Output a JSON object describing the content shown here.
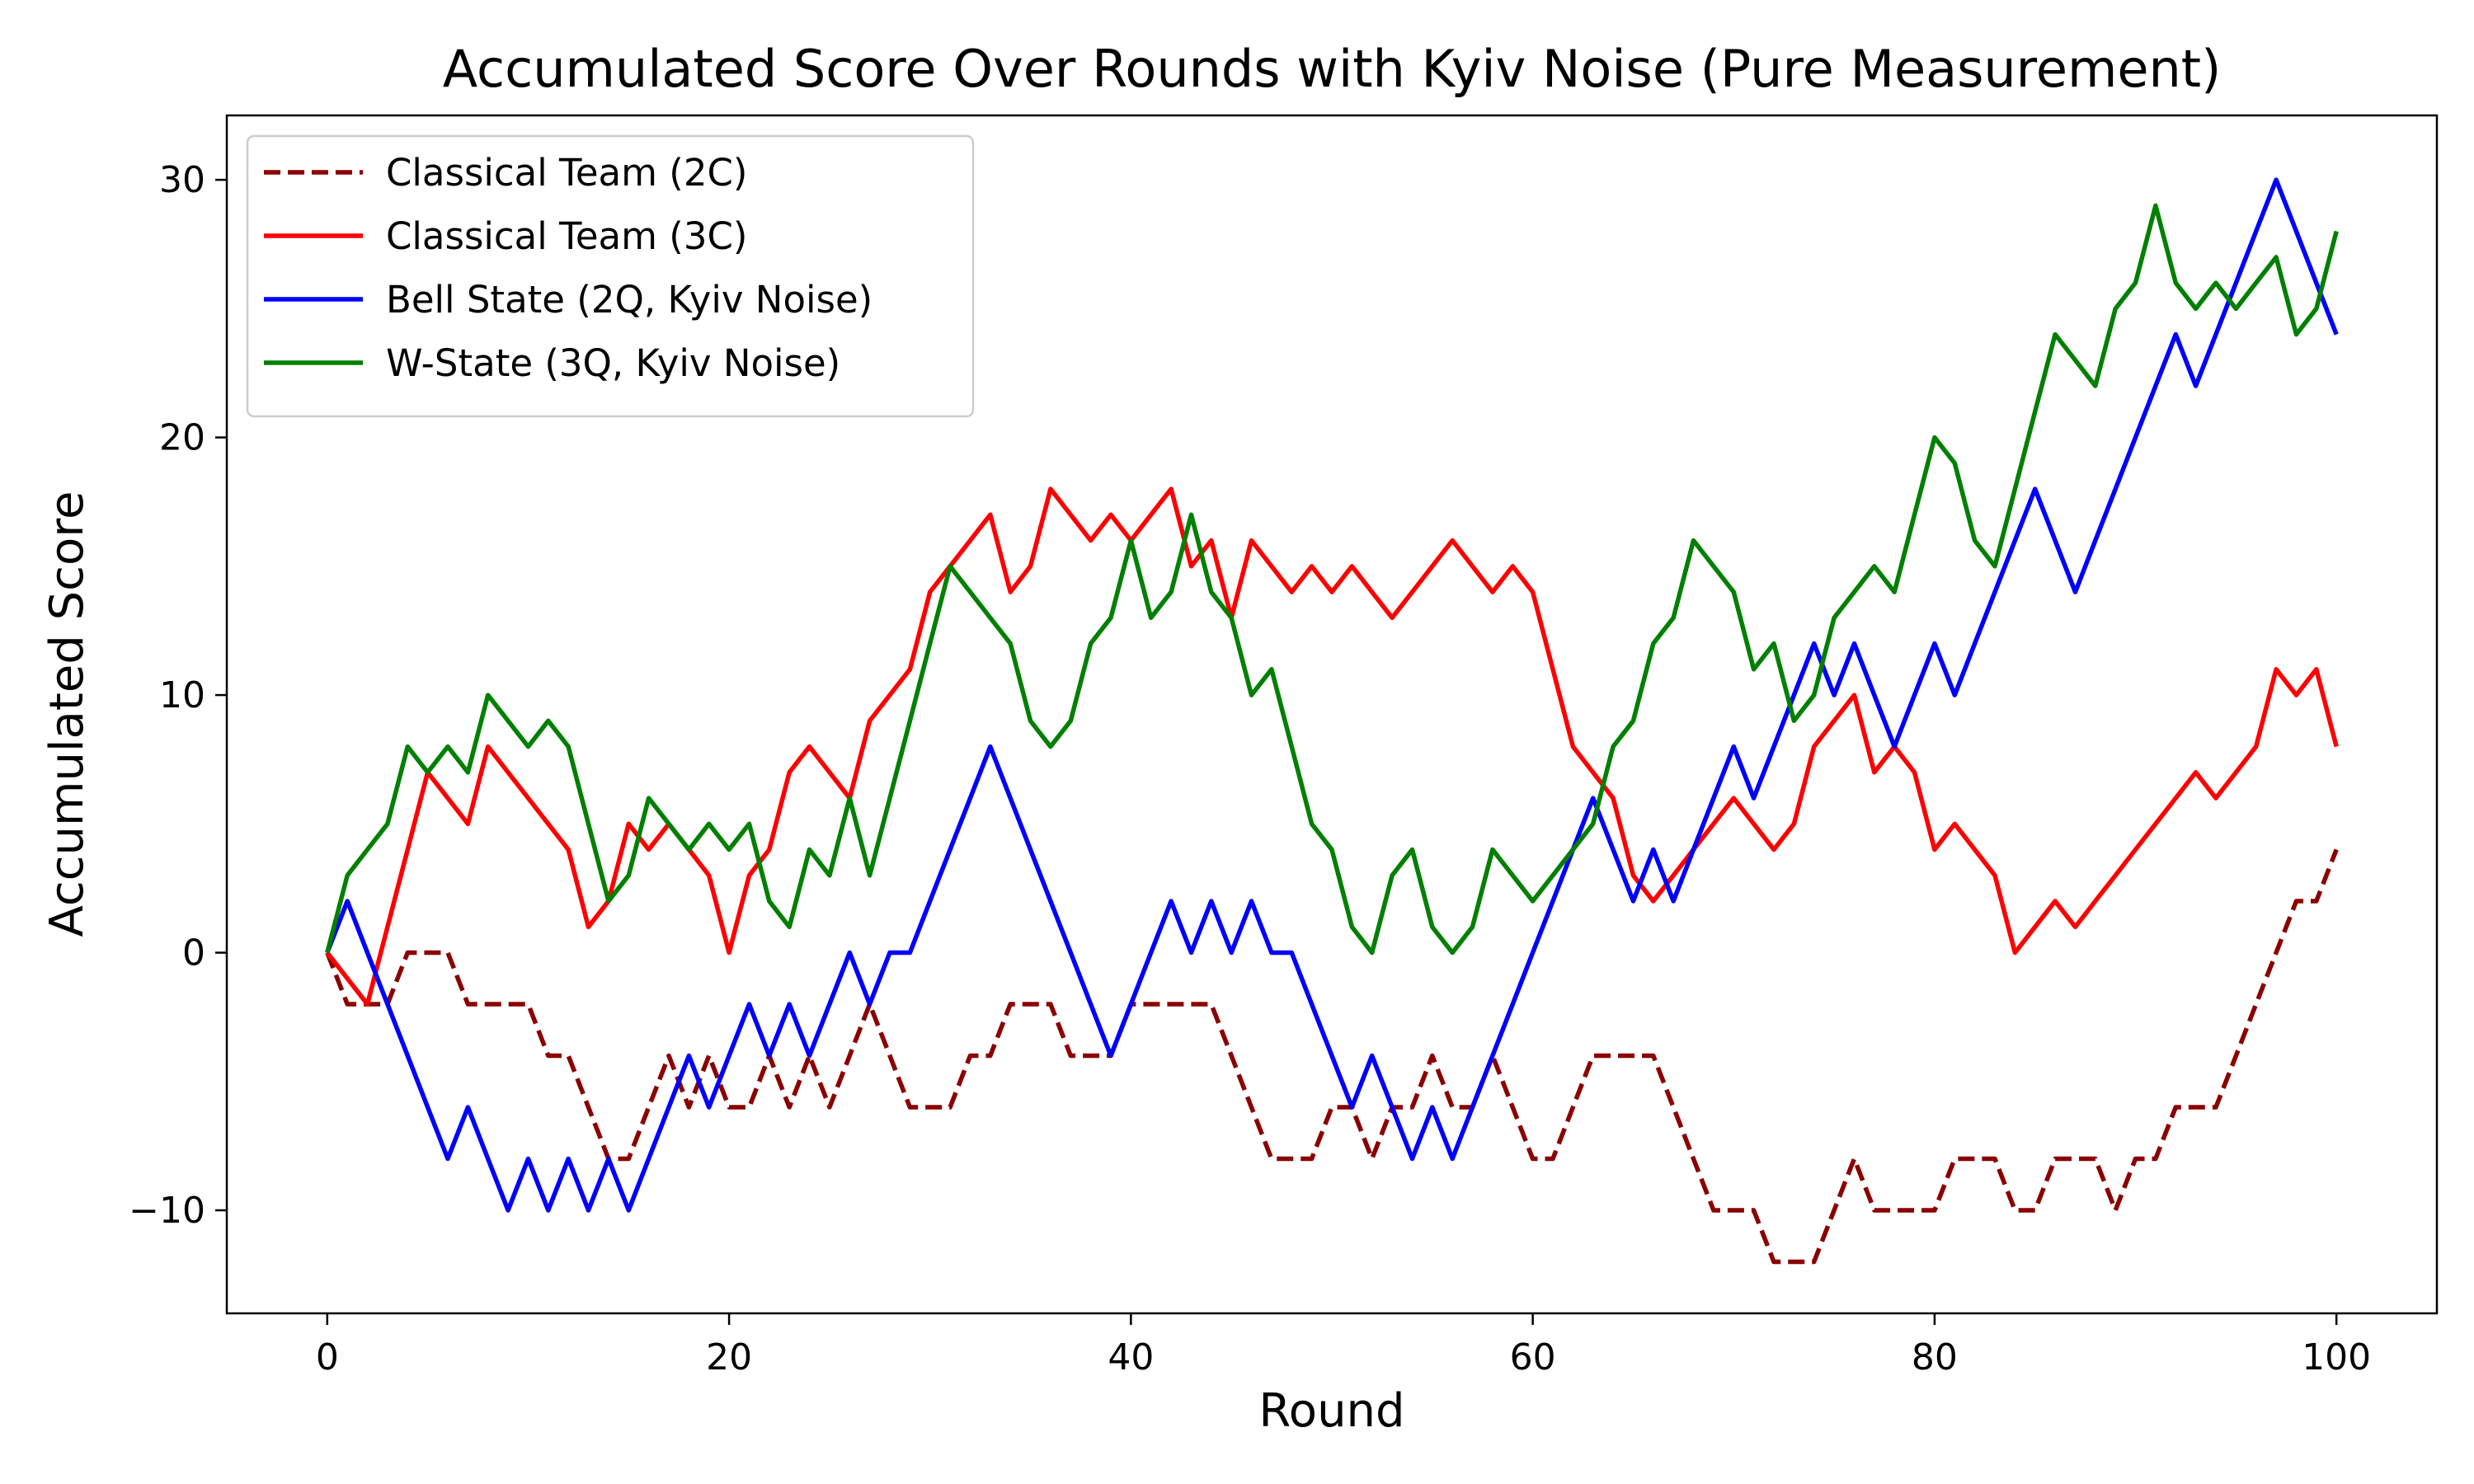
{
  "chart_data": {
    "type": "line",
    "title": "Accumulated Score Over Rounds with Kyiv Noise (Pure Measurement)",
    "xlabel": "Round",
    "ylabel": "Accumulated Score",
    "xlim": [
      -5,
      105
    ],
    "ylim": [
      -14,
      32.5
    ],
    "xticks": [
      0,
      20,
      40,
      60,
      80,
      100
    ],
    "yticks": [
      -10,
      0,
      10,
      20,
      30
    ],
    "xtick_labels": [
      "0",
      "20",
      "40",
      "60",
      "80",
      "100"
    ],
    "ytick_labels": [
      "−10",
      "0",
      "10",
      "20",
      "30"
    ],
    "grid": false,
    "legend_position": "top-left",
    "series": [
      {
        "name": "Classical Team (2C)",
        "color": "#8b0000",
        "style": "dashed",
        "x": [
          0,
          1,
          2,
          3,
          4,
          5,
          6,
          7,
          8,
          9,
          10,
          11,
          12,
          13,
          14,
          15,
          16,
          17,
          18,
          19,
          20,
          21,
          22,
          23,
          24,
          25,
          26,
          27,
          28,
          29,
          30,
          31,
          32,
          33,
          34,
          35,
          36,
          37,
          38,
          39,
          40,
          41,
          42,
          43,
          44,
          45,
          46,
          47,
          48,
          49,
          50,
          51,
          52,
          53,
          54,
          55,
          56,
          57,
          58,
          59,
          60,
          61,
          62,
          63,
          64,
          65,
          66,
          67,
          68,
          69,
          70,
          71,
          72,
          73,
          74,
          75,
          76,
          77,
          78,
          79,
          80,
          81,
          82,
          83,
          84,
          85,
          86,
          87,
          88,
          89,
          90,
          91,
          92,
          93,
          94,
          95,
          96,
          97,
          98,
          99,
          100
        ],
        "values": [
          0,
          -2,
          -2,
          -2,
          0,
          0,
          0,
          -2,
          -2,
          -2,
          -2,
          -4,
          -4,
          -6,
          -8,
          -8,
          -6,
          -4,
          -6,
          -4,
          -6,
          -6,
          -4,
          -6,
          -4,
          -6,
          -4,
          -2,
          -4,
          -6,
          -6,
          -6,
          -4,
          -4,
          -2,
          -2,
          -2,
          -4,
          -4,
          -4,
          -2,
          -2,
          -2,
          -2,
          -2,
          -4,
          -6,
          -8,
          -8,
          -8,
          -6,
          -6,
          -8,
          -6,
          -6,
          -4,
          -6,
          -6,
          -4,
          -6,
          -8,
          -8,
          -6,
          -4,
          -4,
          -4,
          -4,
          -6,
          -8,
          -10,
          -10,
          -10,
          -12,
          -12,
          -12,
          -10,
          -8,
          -10,
          -10,
          -10,
          -10,
          -8,
          -8,
          -8,
          -10,
          -10,
          -8,
          -8,
          -8,
          -10,
          -8,
          -8,
          -6,
          -6,
          -6,
          -4,
          -2,
          0,
          2,
          2,
          4
        ]
      },
      {
        "name": "Classical Team (3C)",
        "color": "#ff0000",
        "style": "solid",
        "x": [
          0,
          1,
          2,
          3,
          4,
          5,
          6,
          7,
          8,
          9,
          10,
          11,
          12,
          13,
          14,
          15,
          16,
          17,
          18,
          19,
          20,
          21,
          22,
          23,
          24,
          25,
          26,
          27,
          28,
          29,
          30,
          31,
          32,
          33,
          34,
          35,
          36,
          37,
          38,
          39,
          40,
          41,
          42,
          43,
          44,
          45,
          46,
          47,
          48,
          49,
          50,
          51,
          52,
          53,
          54,
          55,
          56,
          57,
          58,
          59,
          60,
          61,
          62,
          63,
          64,
          65,
          66,
          67,
          68,
          69,
          70,
          71,
          72,
          73,
          74,
          75,
          76,
          77,
          78,
          79,
          80,
          81,
          82,
          83,
          84,
          85,
          86,
          87,
          88,
          89,
          90,
          91,
          92,
          93,
          94,
          95,
          96,
          97,
          98,
          99,
          100
        ],
        "values": [
          0,
          -1,
          -2,
          1,
          4,
          7,
          6,
          5,
          8,
          7,
          6,
          5,
          4,
          1,
          2,
          5,
          4,
          5,
          4,
          3,
          0,
          3,
          4,
          7,
          8,
          7,
          6,
          9,
          10,
          11,
          14,
          15,
          16,
          17,
          14,
          15,
          18,
          17,
          16,
          17,
          16,
          17,
          18,
          15,
          16,
          13,
          16,
          15,
          14,
          15,
          14,
          15,
          14,
          13,
          14,
          15,
          16,
          15,
          14,
          15,
          14,
          11,
          8,
          7,
          6,
          3,
          2,
          3,
          4,
          5,
          6,
          5,
          4,
          5,
          8,
          9,
          10,
          7,
          8,
          7,
          4,
          5,
          4,
          3,
          0,
          1,
          2,
          1,
          2,
          3,
          4,
          5,
          6,
          7,
          6,
          7,
          8,
          11,
          10,
          11,
          8
        ]
      },
      {
        "name": "Bell State (2Q, Kyiv Noise)",
        "color": "#0000ff",
        "style": "solid",
        "x": [
          0,
          1,
          2,
          3,
          4,
          5,
          6,
          7,
          8,
          9,
          10,
          11,
          12,
          13,
          14,
          15,
          16,
          17,
          18,
          19,
          20,
          21,
          22,
          23,
          24,
          25,
          26,
          27,
          28,
          29,
          30,
          31,
          32,
          33,
          34,
          35,
          36,
          37,
          38,
          39,
          40,
          41,
          42,
          43,
          44,
          45,
          46,
          47,
          48,
          49,
          50,
          51,
          52,
          53,
          54,
          55,
          56,
          57,
          58,
          59,
          60,
          61,
          62,
          63,
          64,
          65,
          66,
          67,
          68,
          69,
          70,
          71,
          72,
          73,
          74,
          75,
          76,
          77,
          78,
          79,
          80,
          81,
          82,
          83,
          84,
          85,
          86,
          87,
          88,
          89,
          90,
          91,
          92,
          93,
          94,
          95,
          96,
          97,
          98,
          99,
          100
        ],
        "values": [
          0,
          2,
          0,
          -2,
          -4,
          -6,
          -8,
          -6,
          -8,
          -10,
          -8,
          -10,
          -8,
          -10,
          -8,
          -10,
          -8,
          -6,
          -4,
          -6,
          -4,
          -2,
          -4,
          -2,
          -4,
          -2,
          0,
          -2,
          0,
          0,
          2,
          4,
          6,
          8,
          6,
          4,
          2,
          0,
          -2,
          -4,
          -2,
          0,
          2,
          0,
          2,
          0,
          2,
          0,
          0,
          -2,
          -4,
          -6,
          -4,
          -6,
          -8,
          -6,
          -8,
          -6,
          -4,
          -2,
          0,
          2,
          4,
          6,
          4,
          2,
          4,
          2,
          4,
          6,
          8,
          6,
          8,
          10,
          12,
          10,
          12,
          10,
          8,
          10,
          12,
          10,
          12,
          14,
          16,
          18,
          16,
          14,
          16,
          18,
          20,
          22,
          24,
          22,
          24,
          26,
          28,
          30,
          28,
          26,
          24
        ]
      },
      {
        "name": "W-State (3Q, Kyiv Noise)",
        "color": "#008000",
        "style": "solid",
        "x": [
          0,
          1,
          2,
          3,
          4,
          5,
          6,
          7,
          8,
          9,
          10,
          11,
          12,
          13,
          14,
          15,
          16,
          17,
          18,
          19,
          20,
          21,
          22,
          23,
          24,
          25,
          26,
          27,
          28,
          29,
          30,
          31,
          32,
          33,
          34,
          35,
          36,
          37,
          38,
          39,
          40,
          41,
          42,
          43,
          44,
          45,
          46,
          47,
          48,
          49,
          50,
          51,
          52,
          53,
          54,
          55,
          56,
          57,
          58,
          59,
          60,
          61,
          62,
          63,
          64,
          65,
          66,
          67,
          68,
          69,
          70,
          71,
          72,
          73,
          74,
          75,
          76,
          77,
          78,
          79,
          80,
          81,
          82,
          83,
          84,
          85,
          86,
          87,
          88,
          89,
          90,
          91,
          92,
          93,
          94,
          95,
          96,
          97,
          98,
          99,
          100
        ],
        "values": [
          0,
          3,
          4,
          5,
          8,
          7,
          8,
          7,
          10,
          9,
          8,
          9,
          8,
          5,
          2,
          3,
          6,
          5,
          4,
          5,
          4,
          5,
          2,
          1,
          4,
          3,
          6,
          3,
          6,
          9,
          12,
          15,
          14,
          13,
          12,
          9,
          8,
          9,
          12,
          13,
          16,
          13,
          14,
          17,
          14,
          13,
          10,
          11,
          8,
          5,
          4,
          1,
          0,
          3,
          4,
          1,
          0,
          1,
          4,
          3,
          2,
          3,
          4,
          5,
          8,
          9,
          12,
          13,
          16,
          15,
          14,
          11,
          12,
          9,
          10,
          13,
          14,
          15,
          14,
          17,
          20,
          19,
          16,
          15,
          18,
          21,
          24,
          23,
          22,
          25,
          26,
          29,
          26,
          25,
          26,
          25,
          26,
          27,
          24,
          25,
          28
        ]
      }
    ]
  }
}
